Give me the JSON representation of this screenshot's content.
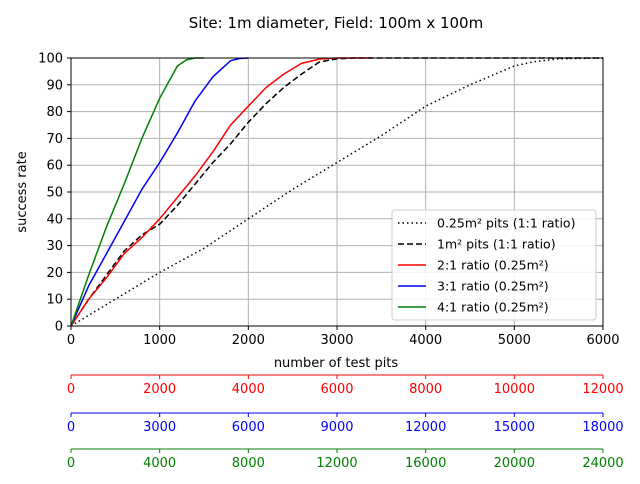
{
  "chart_data": {
    "type": "line",
    "title": "Site: 1m diameter, Field: 100m x 100m",
    "xlabel": "number of test pits",
    "ylabel": "success rate",
    "xlim": [
      0,
      6000
    ],
    "ylim": [
      0,
      100
    ],
    "x_ticks": [
      "0",
      "1000",
      "2000",
      "3000",
      "4000",
      "5000",
      "6000"
    ],
    "y_ticks": [
      "0",
      "10",
      "20",
      "30",
      "40",
      "50",
      "60",
      "70",
      "80",
      "90",
      "100"
    ],
    "grid": true,
    "legend_position": "lower-right",
    "series": [
      {
        "name": "0.25m² pits (1:1 ratio)",
        "color": "#000000",
        "style": "dotted",
        "x": [
          0,
          500,
          1000,
          1500,
          2000,
          2500,
          3000,
          3500,
          4000,
          4500,
          5000,
          5200,
          5500,
          6000
        ],
        "y": [
          0,
          10,
          20,
          29,
          40,
          51,
          61,
          71,
          82,
          90,
          97,
          98.5,
          99.7,
          100
        ]
      },
      {
        "name": "1m² pits (1:1 ratio)",
        "color": "#000000",
        "style": "dashed",
        "x": [
          0,
          200,
          400,
          600,
          800,
          1000,
          1200,
          1400,
          1600,
          1800,
          2000,
          2200,
          2400,
          2600,
          2800,
          3000,
          3200,
          6000
        ],
        "y": [
          0,
          10,
          19,
          28,
          34,
          38,
          45,
          53,
          61,
          68,
          76,
          83,
          89,
          94,
          98.5,
          99.7,
          100,
          100
        ]
      },
      {
        "name": "2:1 ratio (0.25m²)",
        "color": "#ff0000",
        "style": "solid",
        "x": [
          0,
          200,
          400,
          600,
          800,
          1000,
          1200,
          1400,
          1600,
          1800,
          2000,
          2200,
          2400,
          2600,
          2800,
          3000,
          3400
        ],
        "y": [
          0,
          10,
          18,
          27,
          33,
          40,
          48,
          56,
          65,
          75,
          82,
          89,
          94,
          98,
          99.6,
          100,
          100
        ]
      },
      {
        "name": "3:1 ratio (0.25m²)",
        "color": "#0000ff",
        "style": "solid",
        "x": [
          0,
          200,
          400,
          600,
          800,
          1000,
          1200,
          1400,
          1600,
          1800,
          1900,
          2000
        ],
        "y": [
          0,
          15,
          27,
          39,
          51,
          61,
          72,
          84,
          93,
          99,
          99.8,
          100
        ]
      },
      {
        "name": "4:1 ratio (0.25m²)",
        "color": "#008000",
        "style": "solid",
        "x": [
          0,
          200,
          400,
          600,
          800,
          1000,
          1200,
          1300,
          1400,
          1450,
          1500
        ],
        "y": [
          0,
          19,
          37,
          53,
          70,
          85,
          97,
          99.3,
          100,
          100,
          100
        ]
      }
    ],
    "secondary_x_axes": [
      {
        "color": "#ff0000",
        "ticks": [
          "0",
          "2000",
          "4000",
          "6000",
          "8000",
          "10000",
          "12000"
        ]
      },
      {
        "color": "#0000ff",
        "ticks": [
          "0",
          "3000",
          "6000",
          "9000",
          "12000",
          "15000",
          "18000"
        ]
      },
      {
        "color": "#008000",
        "ticks": [
          "0",
          "4000",
          "8000",
          "12000",
          "16000",
          "20000",
          "24000"
        ]
      }
    ]
  }
}
